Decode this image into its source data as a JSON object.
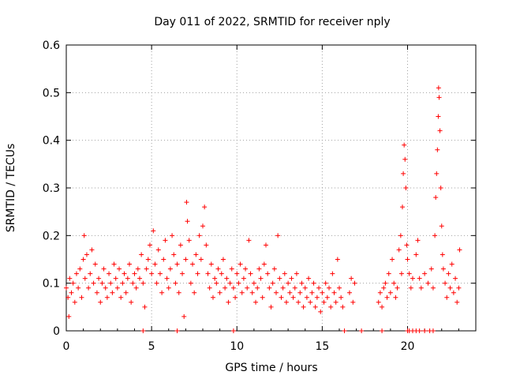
{
  "chart_data": {
    "type": "scatter",
    "title": "Day 011 of 2022, SRMTID for receiver nply",
    "xlabel": "GPS time / hours",
    "ylabel": "SRMTID / TECUs",
    "xlim": [
      0,
      24
    ],
    "ylim": [
      0,
      0.6
    ],
    "xticks": [
      0,
      5,
      10,
      15,
      20
    ],
    "xtick_labels": [
      "0",
      "5",
      "10",
      "15",
      "20"
    ],
    "yticks": [
      0,
      0.1,
      0.2,
      0.3,
      0.4,
      0.5,
      0.6
    ],
    "ytick_labels": [
      "0",
      "0.1",
      "0.2",
      "0.3",
      "0.4",
      "0.5",
      "0.6"
    ],
    "grid": true,
    "marker": "+",
    "series": [
      {
        "name": "SRMTID",
        "color": "#ff0000",
        "points": [
          [
            0.0,
            0.09
          ],
          [
            0.1,
            0.07
          ],
          [
            0.15,
            0.03
          ],
          [
            0.2,
            0.11
          ],
          [
            0.3,
            0.08
          ],
          [
            0.4,
            0.1
          ],
          [
            0.5,
            0.06
          ],
          [
            0.6,
            0.12
          ],
          [
            0.7,
            0.09
          ],
          [
            0.8,
            0.13
          ],
          [
            0.9,
            0.07
          ],
          [
            1.0,
            0.15
          ],
          [
            1.05,
            0.2
          ],
          [
            1.1,
            0.11
          ],
          [
            1.2,
            0.16
          ],
          [
            1.3,
            0.09
          ],
          [
            1.4,
            0.12
          ],
          [
            1.5,
            0.17
          ],
          [
            1.6,
            0.1
          ],
          [
            1.7,
            0.14
          ],
          [
            1.8,
            0.08
          ],
          [
            1.9,
            0.11
          ],
          [
            2.0,
            0.06
          ],
          [
            2.1,
            0.1
          ],
          [
            2.2,
            0.13
          ],
          [
            2.3,
            0.09
          ],
          [
            2.4,
            0.07
          ],
          [
            2.5,
            0.12
          ],
          [
            2.6,
            0.1
          ],
          [
            2.7,
            0.08
          ],
          [
            2.8,
            0.14
          ],
          [
            2.9,
            0.11
          ],
          [
            3.0,
            0.09
          ],
          [
            3.1,
            0.13
          ],
          [
            3.2,
            0.07
          ],
          [
            3.3,
            0.1
          ],
          [
            3.4,
            0.12
          ],
          [
            3.5,
            0.08
          ],
          [
            3.6,
            0.11
          ],
          [
            3.7,
            0.14
          ],
          [
            3.8,
            0.06
          ],
          [
            3.9,
            0.1
          ],
          [
            4.0,
            0.12
          ],
          [
            4.1,
            0.09
          ],
          [
            4.2,
            0.13
          ],
          [
            4.3,
            0.11
          ],
          [
            4.4,
            0.16
          ],
          [
            4.5,
            0.1
          ],
          [
            4.6,
            0.05
          ],
          [
            4.7,
            0.13
          ],
          [
            4.8,
            0.15
          ],
          [
            4.9,
            0.18
          ],
          [
            5.0,
            0.12
          ],
          [
            5.1,
            0.21
          ],
          [
            5.2,
            0.14
          ],
          [
            5.3,
            0.1
          ],
          [
            5.4,
            0.17
          ],
          [
            5.5,
            0.12
          ],
          [
            5.6,
            0.08
          ],
          [
            5.7,
            0.15
          ],
          [
            5.8,
            0.19
          ],
          [
            5.9,
            0.11
          ],
          [
            6.0,
            0.09
          ],
          [
            6.1,
            0.13
          ],
          [
            6.2,
            0.2
          ],
          [
            6.3,
            0.16
          ],
          [
            6.4,
            0.1
          ],
          [
            6.5,
            0.14
          ],
          [
            6.6,
            0.08
          ],
          [
            6.7,
            0.18
          ],
          [
            6.8,
            0.12
          ],
          [
            6.9,
            0.03
          ],
          [
            7.0,
            0.15
          ],
          [
            7.05,
            0.27
          ],
          [
            7.1,
            0.23
          ],
          [
            7.2,
            0.19
          ],
          [
            7.3,
            0.1
          ],
          [
            7.4,
            0.14
          ],
          [
            7.5,
            0.08
          ],
          [
            7.6,
            0.16
          ],
          [
            7.7,
            0.12
          ],
          [
            7.8,
            0.2
          ],
          [
            7.9,
            0.15
          ],
          [
            8.0,
            0.22
          ],
          [
            8.1,
            0.26
          ],
          [
            8.2,
            0.18
          ],
          [
            8.3,
            0.12
          ],
          [
            8.4,
            0.09
          ],
          [
            8.5,
            0.14
          ],
          [
            8.6,
            0.07
          ],
          [
            8.7,
            0.11
          ],
          [
            8.8,
            0.1
          ],
          [
            8.9,
            0.13
          ],
          [
            9.0,
            0.08
          ],
          [
            9.1,
            0.12
          ],
          [
            9.2,
            0.15
          ],
          [
            9.3,
            0.09
          ],
          [
            9.4,
            0.11
          ],
          [
            9.5,
            0.06
          ],
          [
            9.6,
            0.1
          ],
          [
            9.7,
            0.13
          ],
          [
            9.8,
            0.09
          ],
          [
            9.9,
            0.07
          ],
          [
            10.0,
            0.12
          ],
          [
            10.1,
            0.1
          ],
          [
            10.2,
            0.14
          ],
          [
            10.3,
            0.08
          ],
          [
            10.4,
            0.11
          ],
          [
            10.5,
            0.13
          ],
          [
            10.6,
            0.09
          ],
          [
            10.7,
            0.19
          ],
          [
            10.8,
            0.12
          ],
          [
            10.9,
            0.08
          ],
          [
            11.0,
            0.1
          ],
          [
            11.1,
            0.06
          ],
          [
            11.2,
            0.09
          ],
          [
            11.3,
            0.13
          ],
          [
            11.4,
            0.11
          ],
          [
            11.5,
            0.07
          ],
          [
            11.6,
            0.14
          ],
          [
            11.7,
            0.18
          ],
          [
            11.8,
            0.12
          ],
          [
            11.9,
            0.09
          ],
          [
            12.0,
            0.05
          ],
          [
            12.1,
            0.1
          ],
          [
            12.2,
            0.13
          ],
          [
            12.3,
            0.08
          ],
          [
            12.4,
            0.2
          ],
          [
            12.5,
            0.11
          ],
          [
            12.6,
            0.07
          ],
          [
            12.7,
            0.09
          ],
          [
            12.8,
            0.12
          ],
          [
            12.9,
            0.06
          ],
          [
            13.0,
            0.1
          ],
          [
            13.1,
            0.08
          ],
          [
            13.2,
            0.11
          ],
          [
            13.3,
            0.07
          ],
          [
            13.4,
            0.09
          ],
          [
            13.5,
            0.12
          ],
          [
            13.6,
            0.06
          ],
          [
            13.7,
            0.08
          ],
          [
            13.8,
            0.1
          ],
          [
            13.9,
            0.05
          ],
          [
            14.0,
            0.09
          ],
          [
            14.1,
            0.07
          ],
          [
            14.2,
            0.11
          ],
          [
            14.3,
            0.06
          ],
          [
            14.4,
            0.08
          ],
          [
            14.5,
            0.1
          ],
          [
            14.6,
            0.05
          ],
          [
            14.7,
            0.07
          ],
          [
            14.8,
            0.09
          ],
          [
            14.9,
            0.04
          ],
          [
            15.0,
            0.08
          ],
          [
            15.1,
            0.06
          ],
          [
            15.2,
            0.1
          ],
          [
            15.3,
            0.07
          ],
          [
            15.4,
            0.09
          ],
          [
            15.5,
            0.05
          ],
          [
            15.6,
            0.12
          ],
          [
            15.7,
            0.08
          ],
          [
            15.8,
            0.06
          ],
          [
            15.9,
            0.15
          ],
          [
            16.0,
            0.09
          ],
          [
            16.1,
            0.07
          ],
          [
            16.2,
            0.05
          ],
          [
            16.6,
            0.08
          ],
          [
            16.7,
            0.11
          ],
          [
            16.8,
            0.06
          ],
          [
            16.9,
            0.1
          ],
          [
            18.3,
            0.06
          ],
          [
            18.4,
            0.08
          ],
          [
            18.5,
            0.05
          ],
          [
            18.6,
            0.09
          ],
          [
            18.7,
            0.1
          ],
          [
            18.8,
            0.07
          ],
          [
            18.9,
            0.12
          ],
          [
            19.0,
            0.08
          ],
          [
            19.1,
            0.15
          ],
          [
            19.2,
            0.1
          ],
          [
            19.3,
            0.07
          ],
          [
            19.4,
            0.09
          ],
          [
            19.5,
            0.17
          ],
          [
            19.6,
            0.2
          ],
          [
            19.65,
            0.12
          ],
          [
            19.7,
            0.26
          ],
          [
            19.75,
            0.33
          ],
          [
            19.8,
            0.39
          ],
          [
            19.85,
            0.36
          ],
          [
            19.9,
            0.3
          ],
          [
            19.95,
            0.18
          ],
          [
            20.0,
            0.15
          ],
          [
            20.1,
            0.12
          ],
          [
            20.2,
            0.09
          ],
          [
            20.3,
            0.11
          ],
          [
            20.5,
            0.16
          ],
          [
            20.6,
            0.19
          ],
          [
            20.7,
            0.11
          ],
          [
            20.8,
            0.09
          ],
          [
            21.0,
            0.12
          ],
          [
            21.2,
            0.1
          ],
          [
            21.4,
            0.13
          ],
          [
            21.5,
            0.09
          ],
          [
            21.6,
            0.2
          ],
          [
            21.65,
            0.28
          ],
          [
            21.7,
            0.33
          ],
          [
            21.75,
            0.38
          ],
          [
            21.8,
            0.45
          ],
          [
            21.82,
            0.51
          ],
          [
            21.85,
            0.49
          ],
          [
            21.9,
            0.42
          ],
          [
            21.95,
            0.3
          ],
          [
            22.0,
            0.22
          ],
          [
            22.05,
            0.16
          ],
          [
            22.1,
            0.13
          ],
          [
            22.2,
            0.1
          ],
          [
            22.3,
            0.07
          ],
          [
            22.4,
            0.12
          ],
          [
            22.5,
            0.09
          ],
          [
            22.6,
            0.14
          ],
          [
            22.7,
            0.08
          ],
          [
            22.8,
            0.11
          ],
          [
            22.9,
            0.06
          ],
          [
            23.0,
            0.09
          ],
          [
            23.05,
            0.17
          ],
          [
            4.5,
            0.0
          ],
          [
            6.5,
            0.0
          ],
          [
            9.8,
            0.0
          ],
          [
            16.3,
            0.0
          ],
          [
            17.3,
            0.0
          ],
          [
            18.5,
            0.0
          ],
          [
            20.0,
            0.0
          ],
          [
            20.1,
            0.0
          ],
          [
            20.3,
            0.0
          ],
          [
            20.5,
            0.0
          ],
          [
            20.7,
            0.0
          ],
          [
            21.0,
            0.0
          ],
          [
            21.3,
            0.0
          ],
          [
            21.5,
            0.0
          ]
        ]
      }
    ]
  }
}
